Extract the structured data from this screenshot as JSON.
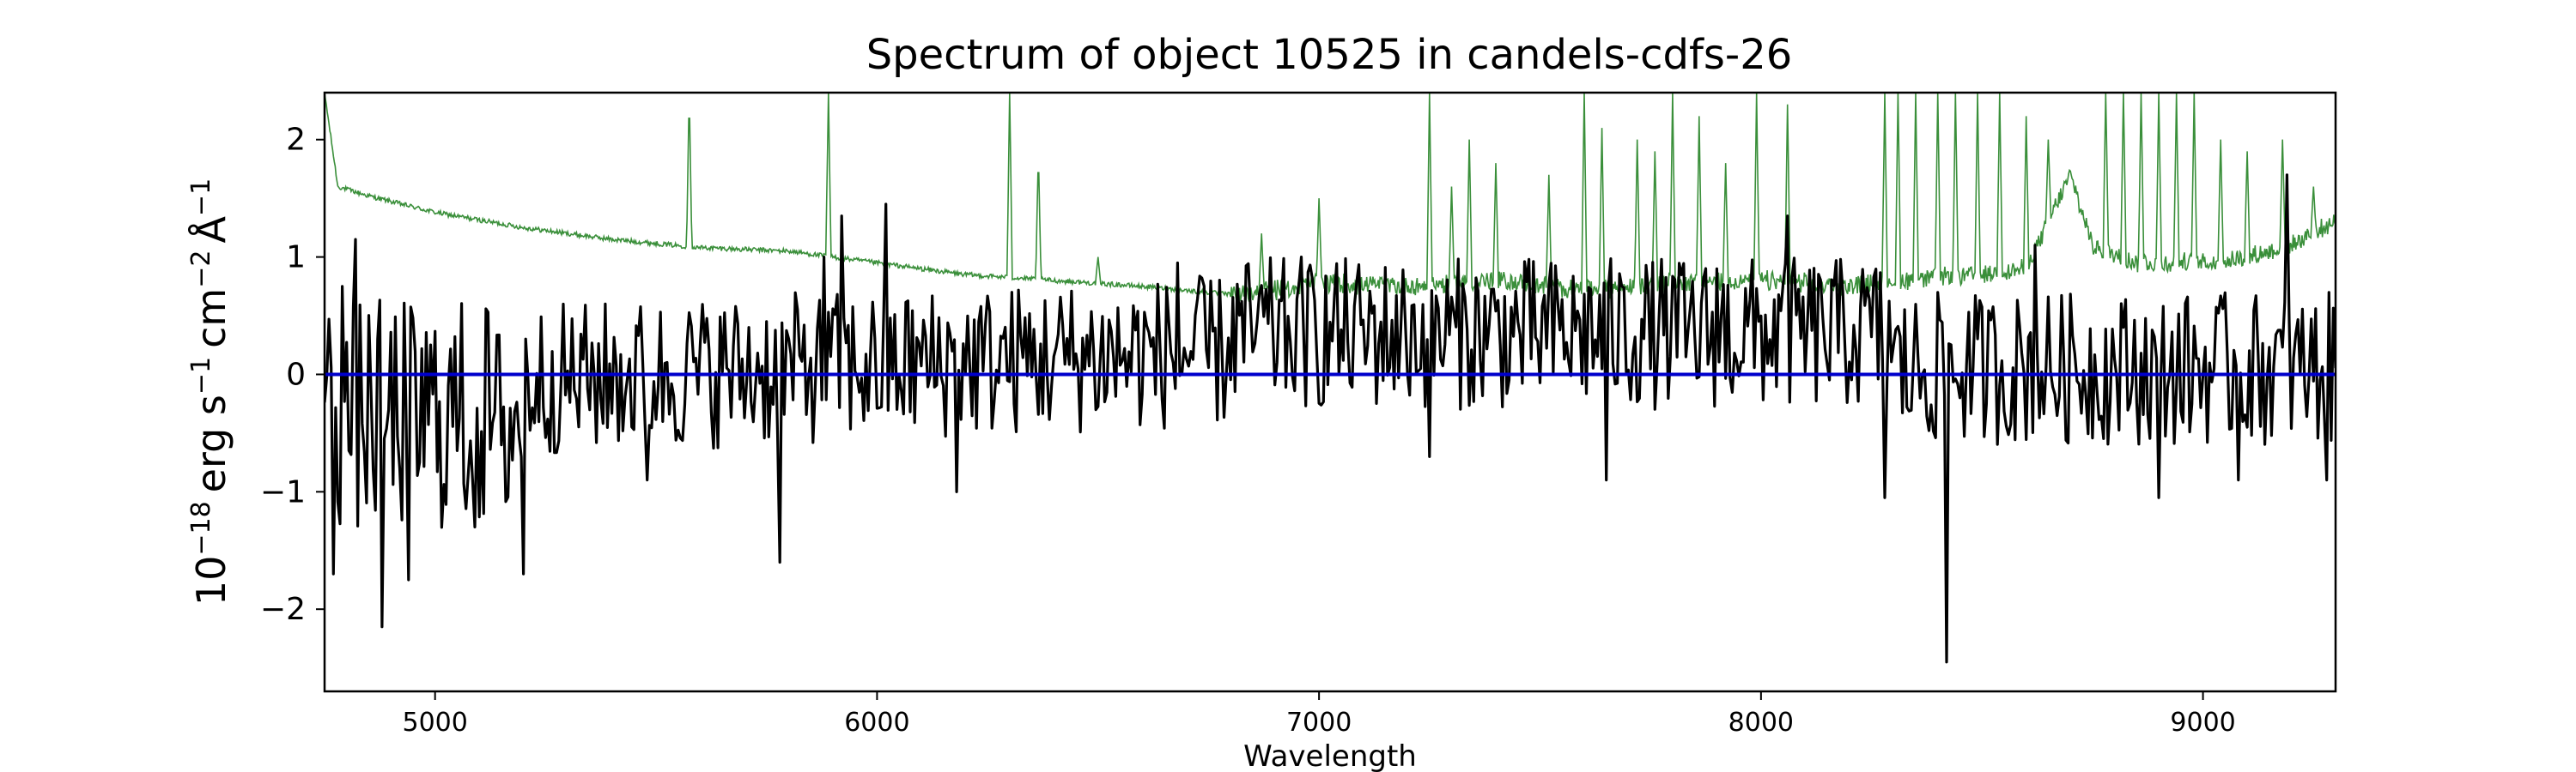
{
  "chart_data": {
    "type": "line",
    "title": "Spectrum of object 10525 in candels-cdfs-26",
    "xlabel": "Wavelength",
    "ylabel": {
      "base": "10",
      "exp": "−18",
      "erg": "erg s",
      "s_exp": "−1",
      "cm": "cm",
      "cm_exp": "−2",
      "A": "Å",
      "A_exp": "−1"
    },
    "xlim": [
      4750,
      9300
    ],
    "ylim": [
      -2.7,
      2.4
    ],
    "xticks": [
      5000,
      6000,
      7000,
      8000,
      9000
    ],
    "yticks": [
      -2,
      -1,
      0,
      1,
      2
    ],
    "xtick_labels": [
      "5000",
      "6000",
      "7000",
      "8000",
      "9000"
    ],
    "ytick_labels": [
      "−2",
      "−1",
      "0",
      "1",
      "2"
    ],
    "grid": false,
    "series": [
      {
        "role": "flux",
        "color": "#000000",
        "x_start": 4750,
        "x_step": 25,
        "values": [
          0.3,
          -0.5,
          0.1,
          -0.8,
          0.6,
          -1.5,
          0.0,
          -1.2,
          -0.6,
          0.2,
          -1.8,
          0.5,
          -0.4,
          -0.1,
          0.8,
          -0.7,
          0.4,
          -0.6,
          0.3,
          -0.2,
          0.5,
          -0.4,
          0.2,
          -0.3,
          0.6,
          -0.2,
          0.1,
          -0.5,
          0.4,
          -0.1,
          -0.2,
          0.3,
          -0.3,
          0.5,
          -0.4,
          0.2,
          -0.1,
          0.4,
          -0.3,
          0.1,
          0.3,
          -0.2,
          0.5,
          -0.4,
          0.2,
          -1.6,
          0.1,
          0.4,
          -0.3,
          0.2,
          -0.5,
          0.6,
          -0.2,
          0.3,
          -1.1,
          0.7,
          -0.4,
          0.2,
          0.4,
          -0.3,
          0.5,
          -0.2,
          0.3,
          -0.1,
          0.4,
          -0.5,
          0.2,
          0.1,
          -0.3,
          0.6,
          -0.2,
          0.4,
          0.1,
          -0.4,
          0.3,
          0.2,
          -0.3,
          0.5,
          0.1,
          -0.2,
          0.6,
          0.2,
          0.4,
          0.0,
          0.5,
          0.3,
          0.7,
          0.2,
          0.6,
          0.4,
          0.8,
          0.3,
          0.7,
          0.5,
          0.6,
          0.4,
          0.8,
          0.2,
          0.6,
          0.9,
          0.5,
          0.7,
          0.4,
          0.9,
          0.6,
          0.5,
          1.0,
          0.4,
          0.7,
          0.6,
          0.8,
          0.5,
          0.9,
          0.3,
          0.7,
          0.6,
          0.5,
          0.8,
          0.4,
          0.6,
          0.9,
          0.5,
          0.7,
          0.3,
          0.6,
          0.8,
          0.4,
          0.7,
          0.5,
          0.9,
          0.2,
          0.6,
          0.4,
          0.8,
          0.5,
          0.3,
          0.7,
          0.6,
          0.4,
          0.8,
          0.5,
          0.6,
          0.3,
          0.7,
          0.5,
          0.4,
          0.6,
          0.8,
          0.3,
          0.5,
          0.9,
          0.4,
          0.6,
          0.7,
          0.2,
          0.5,
          0.8,
          0.3,
          0.6,
          0.4,
          0.7,
          0.5,
          0.2,
          0.6,
          0.4,
          0.8,
          0.3,
          0.5,
          0.6,
          0.2,
          0.4,
          0.7,
          0.3,
          0.5,
          0.1,
          0.6,
          0.4,
          0.3,
          0.5,
          0.7
        ],
        "features": [
          [
            4770,
            -1.7
          ],
          [
            4790,
            0.75
          ],
          [
            4820,
            1.15
          ],
          [
            4880,
            -2.15
          ],
          [
            4940,
            -1.75
          ],
          [
            5090,
            -1.3
          ],
          [
            5150,
            -0.6
          ],
          [
            5200,
            -1.7
          ],
          [
            5480,
            -0.9
          ],
          [
            5780,
            -1.6
          ],
          [
            5880,
            1.0
          ],
          [
            5920,
            1.35
          ],
          [
            6020,
            1.45
          ],
          [
            6180,
            -1.0
          ],
          [
            6680,
            0.95
          ],
          [
            6960,
            1.0
          ],
          [
            7250,
            -0.7
          ],
          [
            7650,
            -0.9
          ],
          [
            7900,
            0.9
          ],
          [
            8060,
            1.35
          ],
          [
            8280,
            -1.05
          ],
          [
            8420,
            -2.45
          ],
          [
            8620,
            1.1
          ],
          [
            8900,
            -1.05
          ],
          [
            9080,
            -0.9
          ],
          [
            9190,
            1.7
          ],
          [
            9280,
            -0.9
          ]
        ]
      },
      {
        "role": "noise",
        "color": "#3a8f3a",
        "continuum": [
          [
            4750,
            2.4
          ],
          [
            4780,
            1.6
          ],
          [
            4850,
            1.52
          ],
          [
            5000,
            1.38
          ],
          [
            5200,
            1.25
          ],
          [
            5400,
            1.15
          ],
          [
            5600,
            1.08
          ],
          [
            5800,
            1.05
          ],
          [
            5900,
            1.0
          ],
          [
            6000,
            0.95
          ],
          [
            6200,
            0.85
          ],
          [
            6400,
            0.8
          ],
          [
            6600,
            0.75
          ],
          [
            6800,
            0.68
          ],
          [
            6900,
            0.72
          ],
          [
            7000,
            0.78
          ],
          [
            7200,
            0.75
          ],
          [
            7400,
            0.8
          ],
          [
            7600,
            0.72
          ],
          [
            7800,
            0.78
          ],
          [
            8000,
            0.8
          ],
          [
            8200,
            0.75
          ],
          [
            8300,
            0.8
          ],
          [
            8500,
            0.85
          ],
          [
            8600,
            0.9
          ],
          [
            8700,
            1.7
          ],
          [
            8750,
            1.1
          ],
          [
            8850,
            0.95
          ],
          [
            9000,
            0.95
          ],
          [
            9100,
            1.0
          ],
          [
            9200,
            1.1
          ],
          [
            9300,
            1.3
          ]
        ],
        "spikes": [
          [
            5575,
            2.4
          ],
          [
            5890,
            2.4
          ],
          [
            6300,
            2.4
          ],
          [
            6365,
            1.9
          ],
          [
            6500,
            1.0
          ],
          [
            6870,
            1.2
          ],
          [
            7000,
            1.5
          ],
          [
            7250,
            2.4
          ],
          [
            7300,
            1.6
          ],
          [
            7340,
            2.0
          ],
          [
            7400,
            1.8
          ],
          [
            7520,
            1.7
          ],
          [
            7600,
            2.4
          ],
          [
            7640,
            2.1
          ],
          [
            7720,
            2.0
          ],
          [
            7760,
            1.9
          ],
          [
            7800,
            2.4
          ],
          [
            7860,
            2.2
          ],
          [
            7920,
            1.8
          ],
          [
            7990,
            2.4
          ],
          [
            8060,
            2.3
          ],
          [
            8280,
            2.4
          ],
          [
            8310,
            2.4
          ],
          [
            8350,
            2.4
          ],
          [
            8400,
            2.4
          ],
          [
            8440,
            2.4
          ],
          [
            8490,
            2.4
          ],
          [
            8540,
            2.4
          ],
          [
            8600,
            2.2
          ],
          [
            8650,
            2.0
          ],
          [
            8780,
            2.4
          ],
          [
            8820,
            2.4
          ],
          [
            8860,
            2.4
          ],
          [
            8900,
            2.4
          ],
          [
            8940,
            2.4
          ],
          [
            8980,
            2.4
          ],
          [
            9040,
            2.0
          ],
          [
            9100,
            1.9
          ],
          [
            9180,
            2.0
          ],
          [
            9250,
            1.6
          ]
        ]
      },
      {
        "role": "model",
        "color": "#0000cc",
        "values": [
          [
            4750,
            0.0
          ],
          [
            9300,
            0.0
          ]
        ]
      }
    ]
  }
}
